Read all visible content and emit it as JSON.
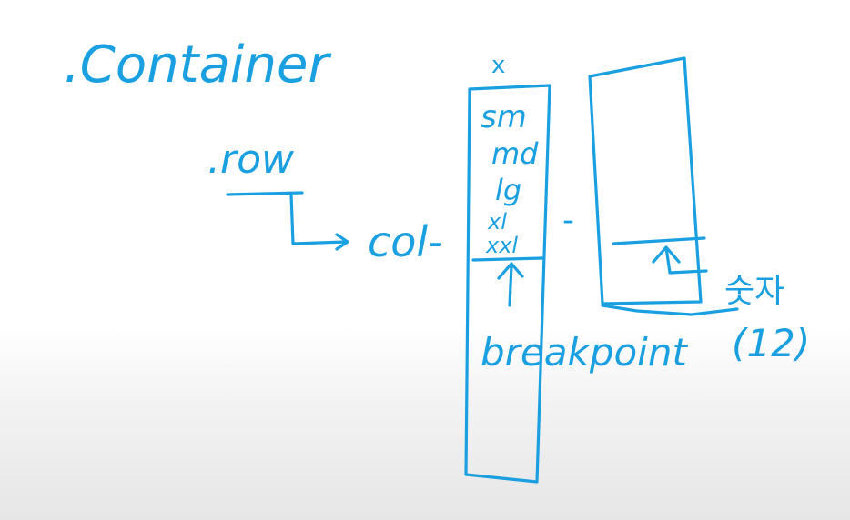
{
  "board": {
    "ink_color": "#1aa0e0",
    "container_label": ".Container",
    "row_label": ".row",
    "col_label": "col-",
    "col_dash": "-",
    "x_mark": "x",
    "breakpoints": [
      "sm",
      "md",
      "lg",
      "xl",
      "xxl"
    ],
    "breakpoint_label": "breakpoint",
    "count_label": "숫자",
    "count_value": "(12)"
  }
}
